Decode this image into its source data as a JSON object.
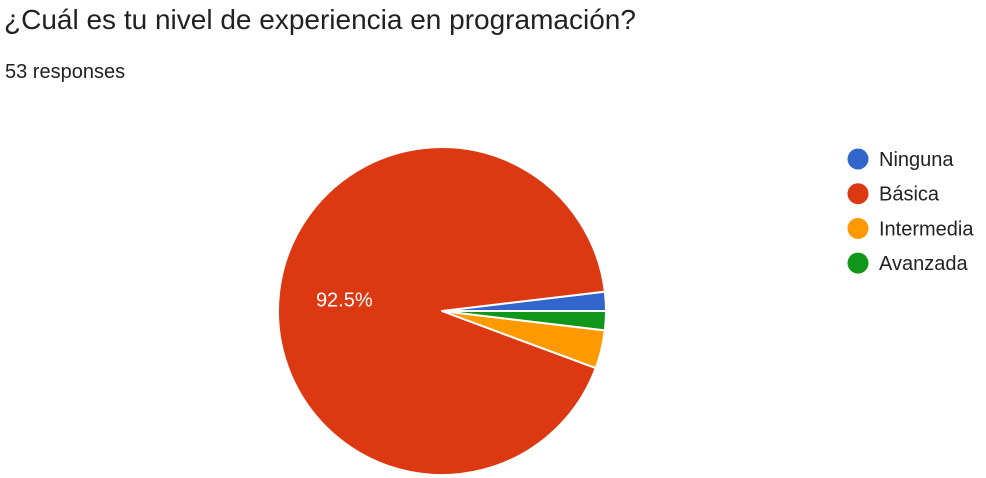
{
  "question": {
    "title": "¿Cuál es tu nivel de experiencia en programación?",
    "responses": "53 responses"
  },
  "chart_data": {
    "type": "pie",
    "title": "¿Cuál es tu nivel de experiencia en programación?",
    "categories": [
      "Ninguna",
      "Básica",
      "Intermedia",
      "Avanzada"
    ],
    "values": [
      1,
      49,
      2,
      1
    ],
    "percent_labels": [
      "",
      "92.5%",
      "",
      ""
    ],
    "colors": [
      "#3366cc",
      "#dc3912",
      "#ff9900",
      "#109618"
    ],
    "legend_position": "right",
    "total": 53
  }
}
